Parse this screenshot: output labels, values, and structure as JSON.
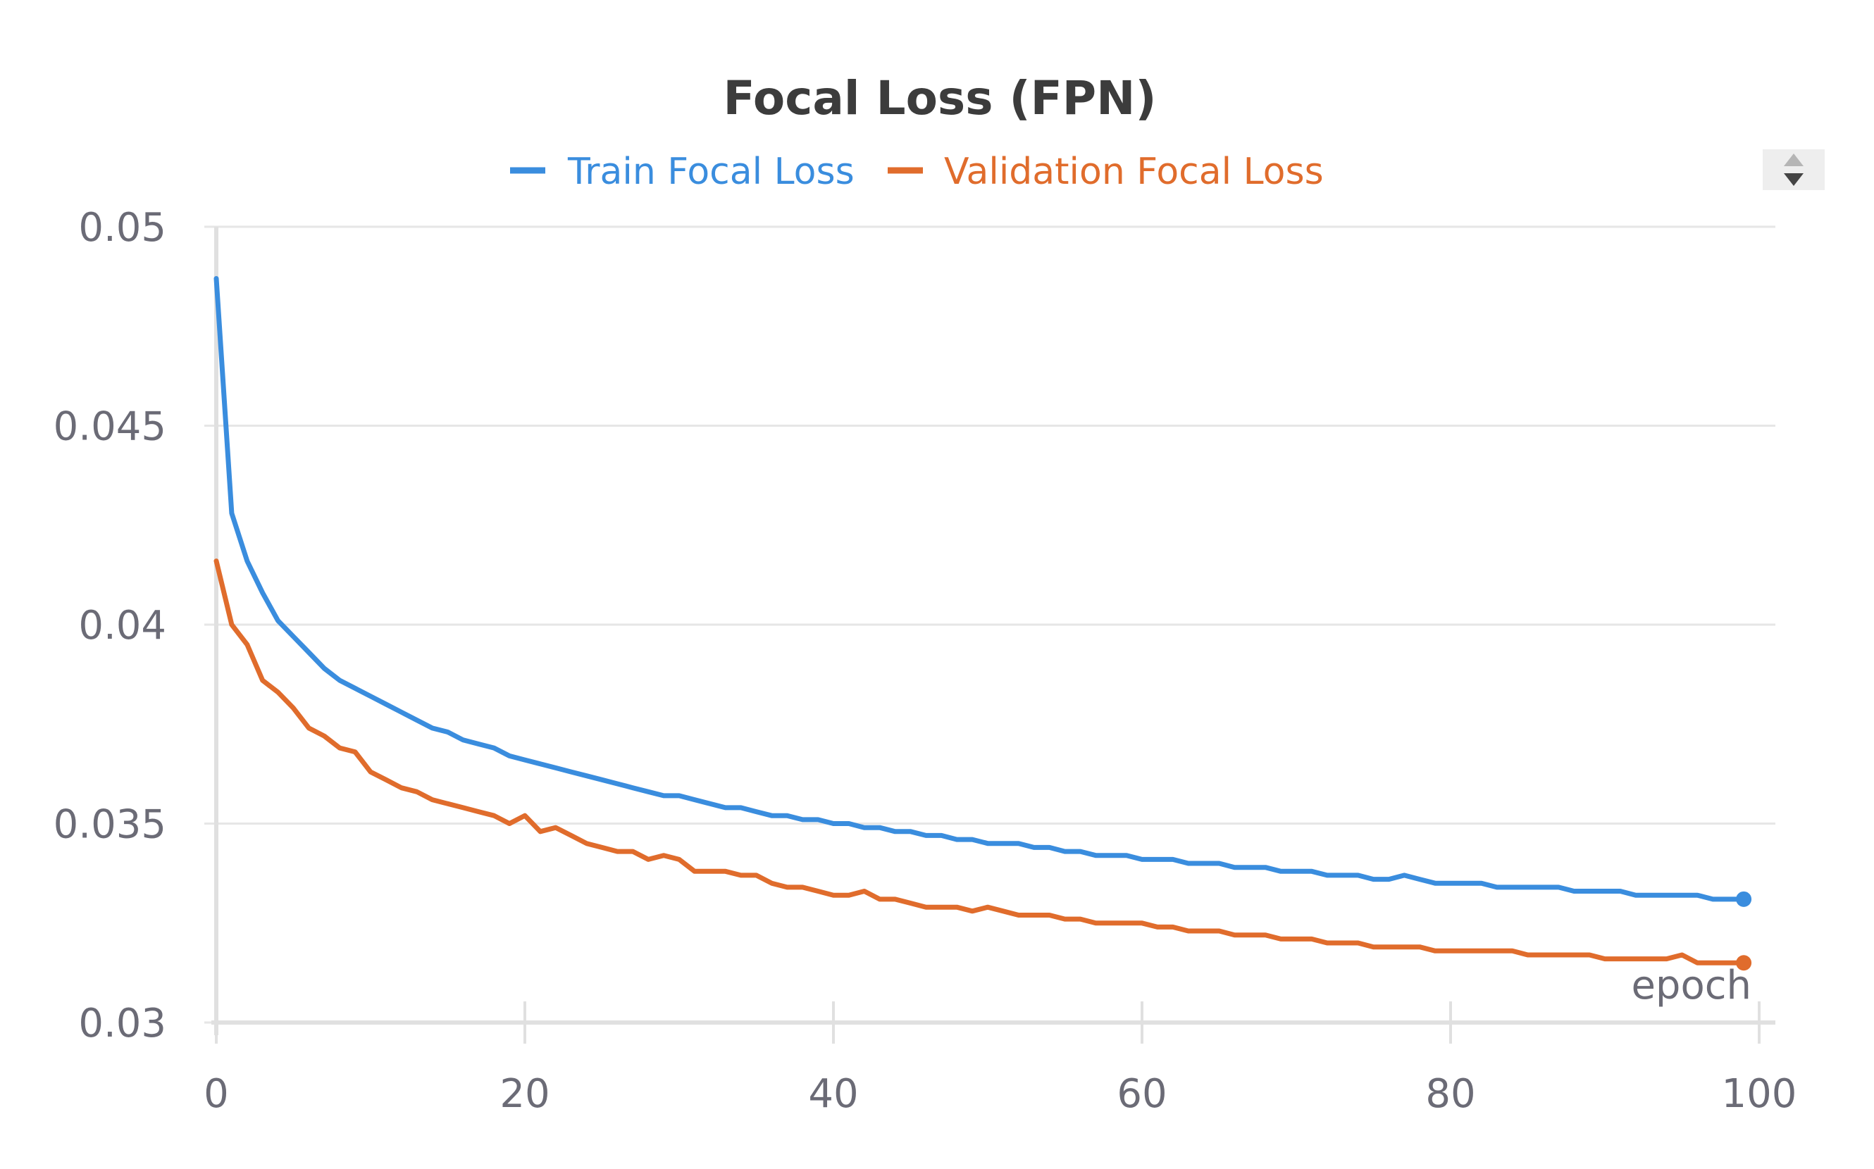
{
  "chart_data": {
    "type": "line",
    "title": "Focal Loss (FPN)",
    "xlabel": "epoch",
    "ylabel": "",
    "xlim": [
      0,
      100
    ],
    "ylim": [
      0.03,
      0.05
    ],
    "xticks": [
      0,
      20,
      40,
      60,
      80,
      100
    ],
    "yticks": [
      0.03,
      0.035,
      0.04,
      0.045,
      0.05
    ],
    "ytick_labels": [
      "0.03",
      "0.035",
      "0.04",
      "0.045",
      "0.05"
    ],
    "xtick_labels": [
      "0",
      "20",
      "40",
      "60",
      "80",
      "100"
    ],
    "grid": true,
    "legend_position": "top-center",
    "x": [
      0,
      1,
      2,
      3,
      4,
      5,
      6,
      7,
      8,
      9,
      10,
      11,
      12,
      13,
      14,
      15,
      16,
      17,
      18,
      19,
      20,
      21,
      22,
      23,
      24,
      25,
      26,
      27,
      28,
      29,
      30,
      31,
      32,
      33,
      34,
      35,
      36,
      37,
      38,
      39,
      40,
      41,
      42,
      43,
      44,
      45,
      46,
      47,
      48,
      49,
      50,
      51,
      52,
      53,
      54,
      55,
      56,
      57,
      58,
      59,
      60,
      61,
      62,
      63,
      64,
      65,
      66,
      67,
      68,
      69,
      70,
      71,
      72,
      73,
      74,
      75,
      76,
      77,
      78,
      79,
      80,
      81,
      82,
      83,
      84,
      85,
      86,
      87,
      88,
      89,
      90,
      91,
      92,
      93,
      94,
      95,
      96,
      97,
      98,
      99
    ],
    "series": [
      {
        "name": "Train Focal Loss",
        "color": "#3a8dde",
        "values": [
          0.0487,
          0.0428,
          0.0416,
          0.0408,
          0.0401,
          0.0397,
          0.0393,
          0.0389,
          0.0386,
          0.0384,
          0.0382,
          0.038,
          0.0378,
          0.0376,
          0.0374,
          0.0373,
          0.0371,
          0.037,
          0.0369,
          0.0367,
          0.0366,
          0.0365,
          0.0364,
          0.0363,
          0.0362,
          0.0361,
          0.036,
          0.0359,
          0.0358,
          0.0357,
          0.0357,
          0.0356,
          0.0355,
          0.0354,
          0.0354,
          0.0353,
          0.0352,
          0.0352,
          0.0351,
          0.0351,
          0.035,
          0.035,
          0.0349,
          0.0349,
          0.0348,
          0.0348,
          0.0347,
          0.0347,
          0.0346,
          0.0346,
          0.0345,
          0.0345,
          0.0345,
          0.0344,
          0.0344,
          0.0343,
          0.0343,
          0.0342,
          0.0342,
          0.0342,
          0.0341,
          0.0341,
          0.0341,
          0.034,
          0.034,
          0.034,
          0.0339,
          0.0339,
          0.0339,
          0.0338,
          0.0338,
          0.0338,
          0.0337,
          0.0337,
          0.0337,
          0.0336,
          0.0336,
          0.0337,
          0.0336,
          0.0335,
          0.0335,
          0.0335,
          0.0335,
          0.0334,
          0.0334,
          0.0334,
          0.0334,
          0.0334,
          0.0333,
          0.0333,
          0.0333,
          0.0333,
          0.0332,
          0.0332,
          0.0332,
          0.0332,
          0.0332,
          0.0331,
          0.0331,
          0.0331
        ]
      },
      {
        "name": "Validation Focal Loss",
        "color": "#e06c2c",
        "values": [
          0.0416,
          0.04,
          0.0395,
          0.0386,
          0.0383,
          0.0379,
          0.0374,
          0.0372,
          0.0369,
          0.0368,
          0.0363,
          0.0361,
          0.0359,
          0.0358,
          0.0356,
          0.0355,
          0.0354,
          0.0353,
          0.0352,
          0.035,
          0.0352,
          0.0348,
          0.0349,
          0.0347,
          0.0345,
          0.0344,
          0.0343,
          0.0343,
          0.0341,
          0.0342,
          0.0341,
          0.0338,
          0.0338,
          0.0338,
          0.0337,
          0.0337,
          0.0335,
          0.0334,
          0.0334,
          0.0333,
          0.0332,
          0.0332,
          0.0333,
          0.0331,
          0.0331,
          0.033,
          0.0329,
          0.0329,
          0.0329,
          0.0328,
          0.0329,
          0.0328,
          0.0327,
          0.0327,
          0.0327,
          0.0326,
          0.0326,
          0.0325,
          0.0325,
          0.0325,
          0.0325,
          0.0324,
          0.0324,
          0.0323,
          0.0323,
          0.0323,
          0.0322,
          0.0322,
          0.0322,
          0.0321,
          0.0321,
          0.0321,
          0.032,
          0.032,
          0.032,
          0.0319,
          0.0319,
          0.0319,
          0.0319,
          0.0318,
          0.0318,
          0.0318,
          0.0318,
          0.0318,
          0.0318,
          0.0317,
          0.0317,
          0.0317,
          0.0317,
          0.0317,
          0.0316,
          0.0316,
          0.0316,
          0.0316,
          0.0316,
          0.0317,
          0.0315,
          0.0315,
          0.0315,
          0.0315
        ]
      }
    ]
  },
  "controls": {
    "legend_scroll_icon": "up-down-arrows-icon"
  }
}
